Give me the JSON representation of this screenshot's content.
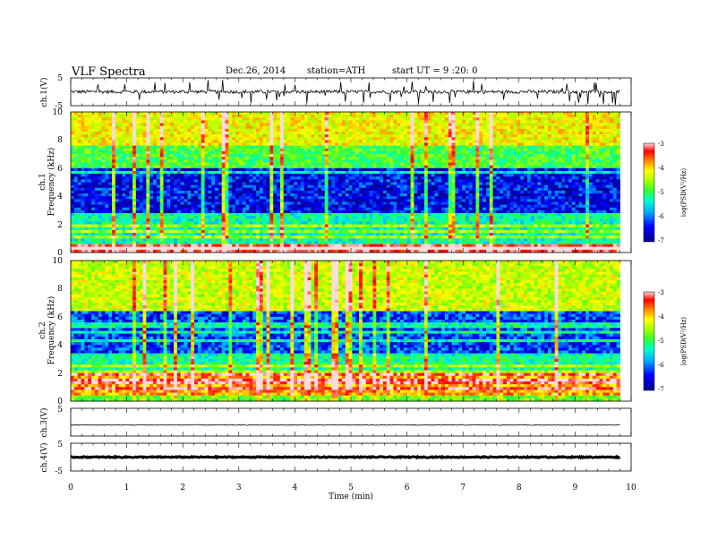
{
  "header": {
    "title": "VLF  Spectra",
    "date": "Dec.26, 2014",
    "station": "station=ATH",
    "start": "start  UT  =   9  :20: 0"
  },
  "colors": {
    "spectrum_scale": [
      "#00008b",
      "#0000ff",
      "#00aaff",
      "#00ffcc",
      "#33ff33",
      "#aaff00",
      "#ffff00",
      "#ff8800",
      "#ff0000",
      "#ffdddd"
    ],
    "trace": "#000000"
  },
  "chart_data": [
    {
      "type": "line",
      "name_panel": "ch1-waveform",
      "ylabel": "ch.1(V)",
      "ylim": [
        -5,
        5
      ],
      "yticks": [
        "5",
        "-5"
      ],
      "xlim": [
        0,
        10
      ],
      "baseline_level": 0,
      "noise_amplitude": 0.6,
      "spike_count": 40
    },
    {
      "type": "heatmap",
      "name_panel": "ch1-spectrogram",
      "channel_label": "ch.1",
      "ylabel": "Frequency (kHz)",
      "ylim": [
        0,
        10
      ],
      "yticks": [
        "0",
        "2",
        "4",
        "6",
        "8",
        "10"
      ],
      "xlim": [
        0,
        10
      ],
      "colorbar": {
        "label": "log(PSD(V²/Hz)",
        "range": [
          -7,
          -3
        ],
        "ticks": [
          "-3",
          "-4",
          "-5",
          "-6",
          "-7"
        ]
      },
      "bands": [
        {
          "freq_range": [
            0,
            0.6
          ],
          "level": -3.3
        },
        {
          "freq_range": [
            0.6,
            2.8
          ],
          "level": -5.6
        },
        {
          "freq_range": [
            2.8,
            6.0
          ],
          "level": -6.6
        },
        {
          "freq_range": [
            6.0,
            7.6
          ],
          "level": -5.2
        },
        {
          "freq_range": [
            7.6,
            10
          ],
          "level": -4.4
        }
      ]
    },
    {
      "type": "heatmap",
      "name_panel": "ch2-spectrogram",
      "channel_label": "ch.2",
      "ylabel": "Frequency (kHz)",
      "ylim": [
        0,
        10
      ],
      "yticks": [
        "0",
        "2",
        "4",
        "6",
        "8",
        "10"
      ],
      "xlim": [
        0,
        10
      ],
      "colorbar": {
        "label": "log(PSD(V²/Hz)",
        "range": [
          -7,
          -3
        ],
        "ticks": [
          "-3",
          "-4",
          "-5",
          "-6",
          "-7"
        ]
      },
      "bands": [
        {
          "freq_range": [
            0,
            0.4
          ],
          "level": -5.0
        },
        {
          "freq_range": [
            0.4,
            2.0
          ],
          "level": -4.0
        },
        {
          "freq_range": [
            2.0,
            3.2
          ],
          "level": -5.5
        },
        {
          "freq_range": [
            3.2,
            6.5
          ],
          "level": -6.4
        },
        {
          "freq_range": [
            6.5,
            10
          ],
          "level": -4.6
        }
      ]
    },
    {
      "type": "line",
      "name_panel": "ch3-waveform",
      "ylabel": "ch.3(V)",
      "ylim": [
        -5,
        5
      ],
      "yticks": [
        "5"
      ],
      "xlim": [
        0,
        10
      ],
      "baseline_level": -1,
      "noise_amplitude": 0.15,
      "spike_count": 0
    },
    {
      "type": "line",
      "name_panel": "ch4-waveform",
      "ylabel": "ch.4(V)",
      "ylim": [
        -5,
        5
      ],
      "yticks": [
        "5",
        "-5"
      ],
      "xlim": [
        0,
        10
      ],
      "baseline_level": 0,
      "noise_amplitude": 0.2,
      "spike_count": 0
    }
  ],
  "x_axis": {
    "label": "Time  (min)",
    "ticks": [
      "0",
      "1",
      "2",
      "3",
      "4",
      "5",
      "6",
      "7",
      "8",
      "9",
      "10"
    ],
    "data_end_min": 9.8
  }
}
